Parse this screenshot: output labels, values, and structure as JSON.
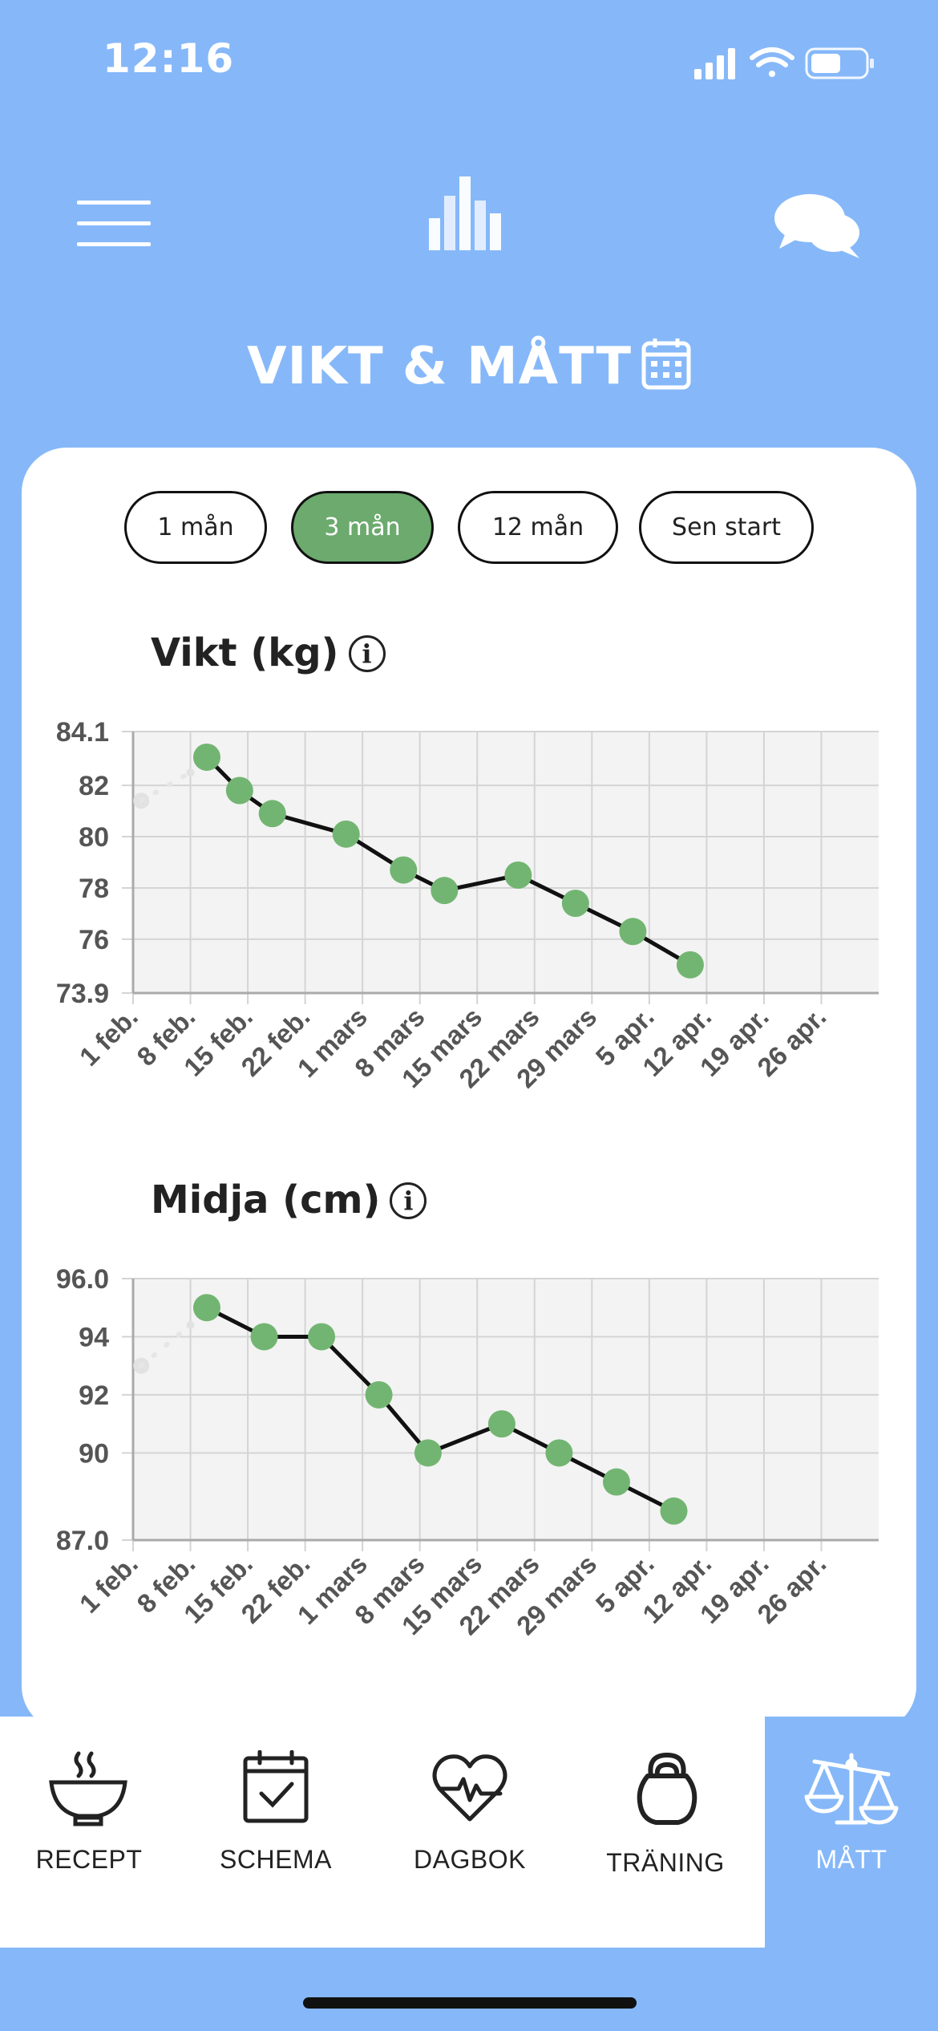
{
  "status_bar": {
    "time": "12:16"
  },
  "header": {
    "menu_icon": "hamburger-menu-icon",
    "logo_icon": "bar-chart-logo-icon",
    "chat_icon": "chat-bubbles-icon",
    "title": "VIKT & MÅTT",
    "calendar_icon": "calendar-icon"
  },
  "range_selector": {
    "options": [
      "1 mån",
      "3 mån",
      "12 mån",
      "Sen start"
    ],
    "selected": "3 mån"
  },
  "charts": [
    {
      "title": "Vikt (kg)",
      "info_glyph": "i"
    },
    {
      "title": "Midja (cm)",
      "info_glyph": "i"
    }
  ],
  "chart_data": [
    {
      "type": "line",
      "title": "Vikt (kg)",
      "x_ticks": [
        "1 feb.",
        "8 feb.",
        "15 feb.",
        "22 feb.",
        "1 mars",
        "8 mars",
        "15 mars",
        "22 mars",
        "29 mars",
        "5 apr.",
        "12 apr.",
        "19 apr.",
        "26 apr."
      ],
      "y_ticks": [
        "84.1",
        "82",
        "80",
        "78",
        "76",
        "73.9"
      ],
      "ylim": [
        73.9,
        84.1
      ],
      "series": [
        {
          "points": [
            {
              "x": "2024-02-10",
              "y": 83.1
            },
            {
              "x": "2024-02-14",
              "y": 81.8
            },
            {
              "x": "2024-02-18",
              "y": 80.9
            },
            {
              "x": "2024-02-27",
              "y": 80.1
            },
            {
              "x": "2024-03-05",
              "y": 78.7
            },
            {
              "x": "2024-03-10",
              "y": 77.9
            },
            {
              "x": "2024-03-19",
              "y": 78.5
            },
            {
              "x": "2024-03-26",
              "y": 77.4
            },
            {
              "x": "2024-04-02",
              "y": 76.3
            },
            {
              "x": "2024-04-09",
              "y": 75.0
            }
          ]
        }
      ],
      "faded_lead_in": [
        {
          "x": "2024-02-02",
          "y": 81.4
        },
        {
          "x": "2024-02-08",
          "y": 82.5
        }
      ],
      "grid": true
    },
    {
      "type": "line",
      "title": "Midja (cm)",
      "x_ticks": [
        "1 feb.",
        "8 feb.",
        "15 feb.",
        "22 feb.",
        "1 mars",
        "8 mars",
        "15 mars",
        "22 mars",
        "29 mars",
        "5 apr.",
        "12 apr.",
        "19 apr.",
        "26 apr."
      ],
      "y_ticks": [
        "96.0",
        "94",
        "92",
        "90",
        "87.0"
      ],
      "ylim": [
        87.0,
        96.0
      ],
      "series": [
        {
          "points": [
            {
              "x": "2024-02-10",
              "y": 95.0
            },
            {
              "x": "2024-02-17",
              "y": 94.0
            },
            {
              "x": "2024-02-24",
              "y": 94.0
            },
            {
              "x": "2024-03-02",
              "y": 92.0
            },
            {
              "x": "2024-03-08",
              "y": 90.0
            },
            {
              "x": "2024-03-17",
              "y": 91.0
            },
            {
              "x": "2024-03-24",
              "y": 90.0
            },
            {
              "x": "2024-03-31",
              "y": 89.0
            },
            {
              "x": "2024-04-07",
              "y": 88.0
            }
          ]
        }
      ],
      "faded_lead_in": [
        {
          "x": "2024-02-02",
          "y": 93.0
        },
        {
          "x": "2024-02-08",
          "y": 94.4
        }
      ],
      "grid": true
    }
  ],
  "tab_bar": {
    "items": [
      {
        "label": "RECEPT",
        "icon": "soup-bowl-icon"
      },
      {
        "label": "SCHEMA",
        "icon": "calendar-check-icon"
      },
      {
        "label": "DAGBOK",
        "icon": "heart-pulse-icon"
      },
      {
        "label": "TRÄNING",
        "icon": "kettlebell-icon"
      },
      {
        "label": "MÅTT",
        "icon": "scale-icon"
      }
    ],
    "active": "MÅTT"
  },
  "colors": {
    "background": "#86b8f9",
    "accent_green": "#6caa6e",
    "point_green": "#72b572",
    "card": "#ffffff"
  }
}
